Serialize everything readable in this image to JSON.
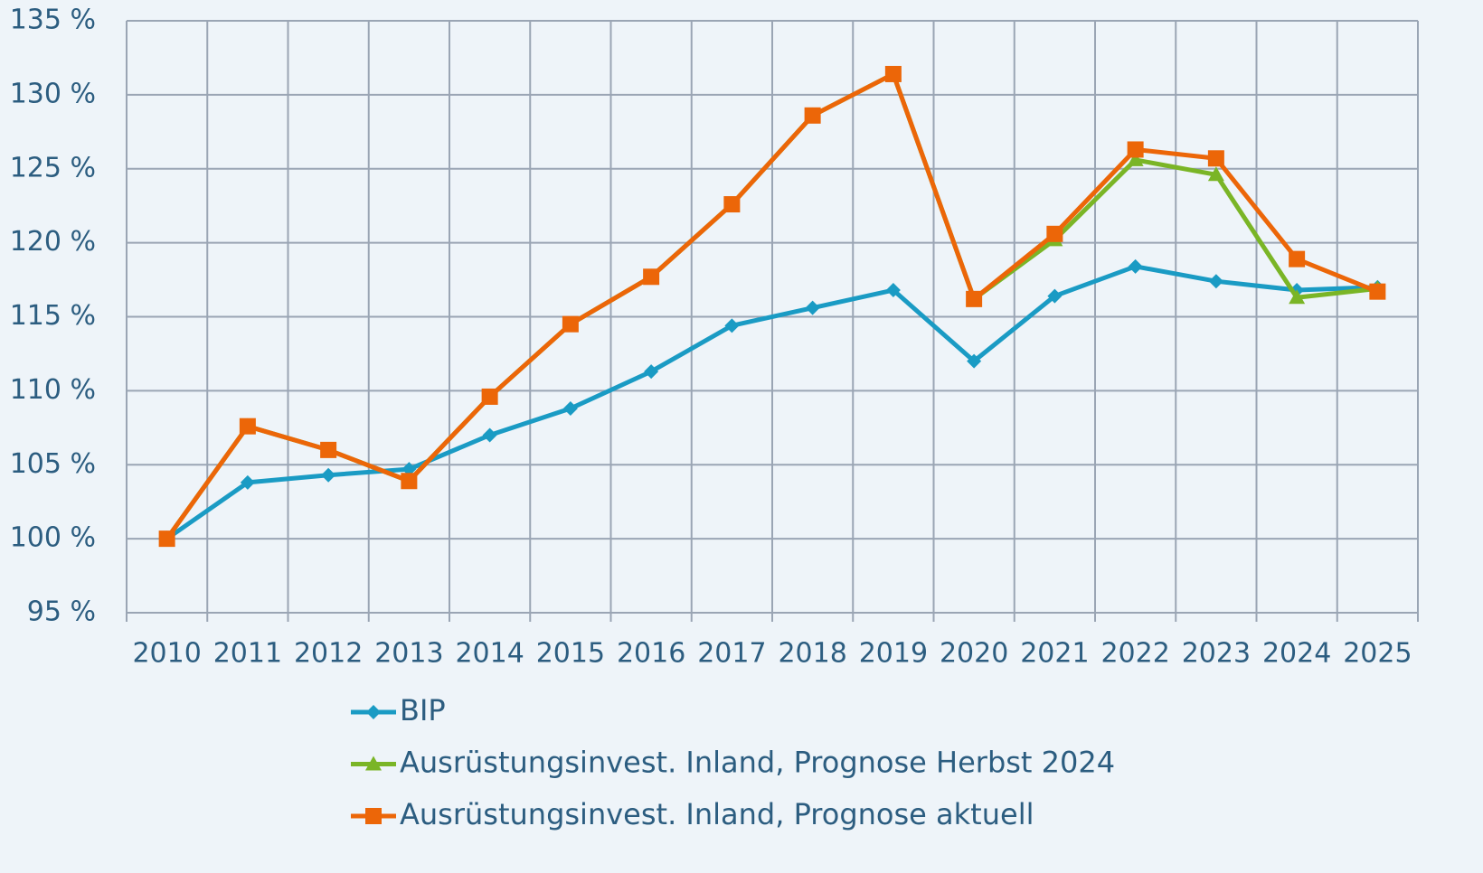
{
  "chart_data": {
    "type": "line",
    "categories": [
      "2010",
      "2011",
      "2012",
      "2013",
      "2014",
      "2015",
      "2016",
      "2017",
      "2018",
      "2019",
      "2020",
      "2021",
      "2022",
      "2023",
      "2024",
      "2025"
    ],
    "series": [
      {
        "name": "BIP",
        "color": "#1a9bc4",
        "marker": "diamond",
        "values": [
          100,
          103.8,
          104.3,
          104.7,
          107.0,
          108.8,
          111.3,
          114.4,
          115.6,
          116.8,
          112.0,
          116.4,
          118.4,
          117.4,
          116.8,
          117.0
        ]
      },
      {
        "name": "Ausrüstungsinvest. Inland, Prognose Herbst 2024",
        "color": "#7ab526",
        "marker": "triangle",
        "values": [
          100,
          107.6,
          106.0,
          103.9,
          109.6,
          114.5,
          117.7,
          122.6,
          128.6,
          131.4,
          116.2,
          120.2,
          125.6,
          124.6,
          116.3,
          116.9
        ]
      },
      {
        "name": "Ausrüstungsinvest. Inland, Prognose aktuell",
        "color": "#ec6608",
        "marker": "square",
        "values": [
          100,
          107.6,
          106.0,
          103.9,
          109.6,
          114.5,
          117.7,
          122.6,
          128.6,
          131.4,
          116.2,
          120.6,
          126.3,
          125.7,
          118.9,
          116.7
        ]
      }
    ],
    "ylim": [
      95,
      135
    ],
    "yticks": [
      {
        "value": 95,
        "label": "95 %"
      },
      {
        "value": 100,
        "label": "100 %"
      },
      {
        "value": 105,
        "label": "105 %"
      },
      {
        "value": 110,
        "label": "110 %"
      },
      {
        "value": 115,
        "label": "115 %"
      },
      {
        "value": 120,
        "label": "120 %"
      },
      {
        "value": 125,
        "label": "125 %"
      },
      {
        "value": 130,
        "label": "130 %"
      },
      {
        "value": 135,
        "label": "135 %"
      }
    ],
    "grid": true
  }
}
